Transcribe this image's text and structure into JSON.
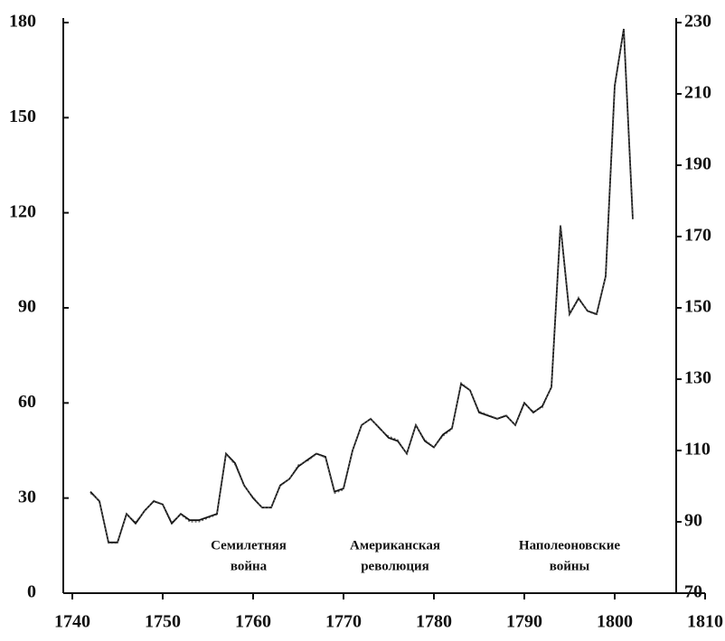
{
  "chart_data": {
    "type": "line",
    "x": [
      1742,
      1743,
      1744,
      1745,
      1746,
      1747,
      1748,
      1749,
      1750,
      1751,
      1752,
      1753,
      1754,
      1755,
      1756,
      1757,
      1758,
      1759,
      1760,
      1761,
      1762,
      1763,
      1764,
      1765,
      1766,
      1767,
      1768,
      1769,
      1770,
      1771,
      1772,
      1773,
      1774,
      1775,
      1776,
      1777,
      1778,
      1779,
      1780,
      1781,
      1782,
      1783,
      1784,
      1785,
      1786,
      1787,
      1788,
      1789,
      1790,
      1791,
      1792,
      1793,
      1794,
      1795,
      1796,
      1797,
      1798,
      1799,
      1800,
      1801,
      1802
    ],
    "series": [
      {
        "color": "#111111",
        "values": [
          32,
          29,
          16,
          16,
          25,
          22,
          26,
          29,
          28,
          22,
          25,
          23,
          23,
          24,
          25,
          44,
          41,
          34,
          30,
          27,
          27,
          34,
          36,
          40,
          42,
          44,
          43,
          32,
          33,
          45,
          53,
          55,
          52,
          49,
          48,
          44,
          53,
          48,
          46,
          50,
          52,
          66,
          64,
          57,
          56,
          55,
          56,
          53,
          60,
          57,
          59,
          65,
          116,
          88,
          93,
          89,
          88,
          100,
          160,
          178,
          118
        ]
      },
      {
        "color": "#555555",
        "axis": "y2",
        "dashed": true,
        "values": [
          98,
          96,
          84,
          84,
          92,
          90,
          93,
          96,
          95,
          90,
          92,
          90,
          90,
          91,
          92,
          109,
          106,
          100,
          97,
          94,
          94,
          100,
          102,
          106,
          107,
          109,
          108,
          98,
          99,
          110,
          117,
          119,
          116,
          114,
          113,
          109,
          117,
          113,
          111,
          114,
          116,
          129,
          127,
          121,
          120,
          119,
          120,
          117,
          123,
          121,
          122,
          128,
          173,
          148,
          153,
          149,
          148,
          159,
          212,
          228,
          175
        ]
      }
    ],
    "xlim": [
      1739,
      1810
    ],
    "xticks": [
      1740,
      1750,
      1760,
      1770,
      1780,
      1790,
      1800,
      1810
    ],
    "ylim": [
      0,
      180
    ],
    "yticks": [
      0,
      30,
      60,
      90,
      120,
      150,
      180
    ],
    "y2lim": [
      70,
      230
    ],
    "y2ticks": [
      70,
      90,
      110,
      130,
      150,
      170,
      190,
      210,
      230
    ],
    "annotations": [
      [
        "Семилетняя",
        "война"
      ],
      [
        "Американская",
        "революция"
      ],
      [
        "Наполеоновские",
        "войны"
      ]
    ]
  }
}
